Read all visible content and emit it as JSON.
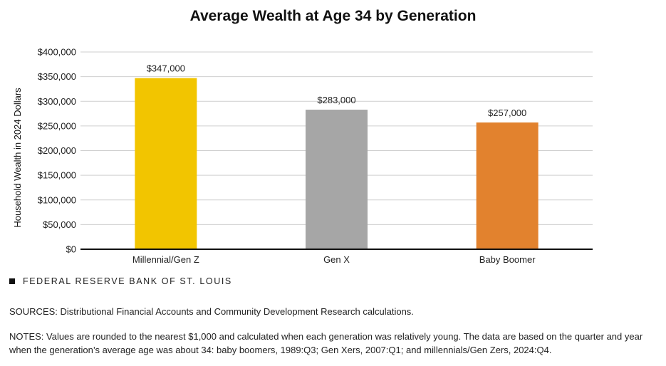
{
  "chart_data": {
    "type": "bar",
    "title": "Average Wealth at Age 34 by Generation",
    "xlabel": "",
    "ylabel": "Household Wealth in 2024 Dollars",
    "categories": [
      "Millennial/Gen Z",
      "Gen X",
      "Baby Boomer"
    ],
    "values": [
      347000,
      283000,
      257000
    ],
    "data_labels": [
      "$347,000",
      "$283,000",
      "$257,000"
    ],
    "colors": [
      "#F2C500",
      "#A6A6A6",
      "#E2822E"
    ],
    "ylim": [
      0,
      400000
    ],
    "yticks": [
      0,
      50000,
      100000,
      150000,
      200000,
      250000,
      300000,
      350000,
      400000
    ],
    "ytick_labels": [
      "$0",
      "$50,000",
      "$100,000",
      "$150,000",
      "$200,000",
      "$250,000",
      "$300,000",
      "$350,000",
      "$400,000"
    ],
    "grid": true,
    "gridline_color": "#cfcfcf",
    "axis_color": "#111111"
  },
  "footer": {
    "source_org": "FEDERAL RESERVE BANK OF ST. LOUIS",
    "sources": "SOURCES: Distributional Financial Accounts and Community Development Research calculations.",
    "notes": "NOTES: Values are rounded to the nearest $1,000 and calculated when each generation was relatively young. The data are based on the quarter and year when the generation’s average age was about 34: baby boomers, 1989:Q3; Gen Xers, 2007:Q1; and millennials/Gen Zers, 2024:Q4."
  }
}
